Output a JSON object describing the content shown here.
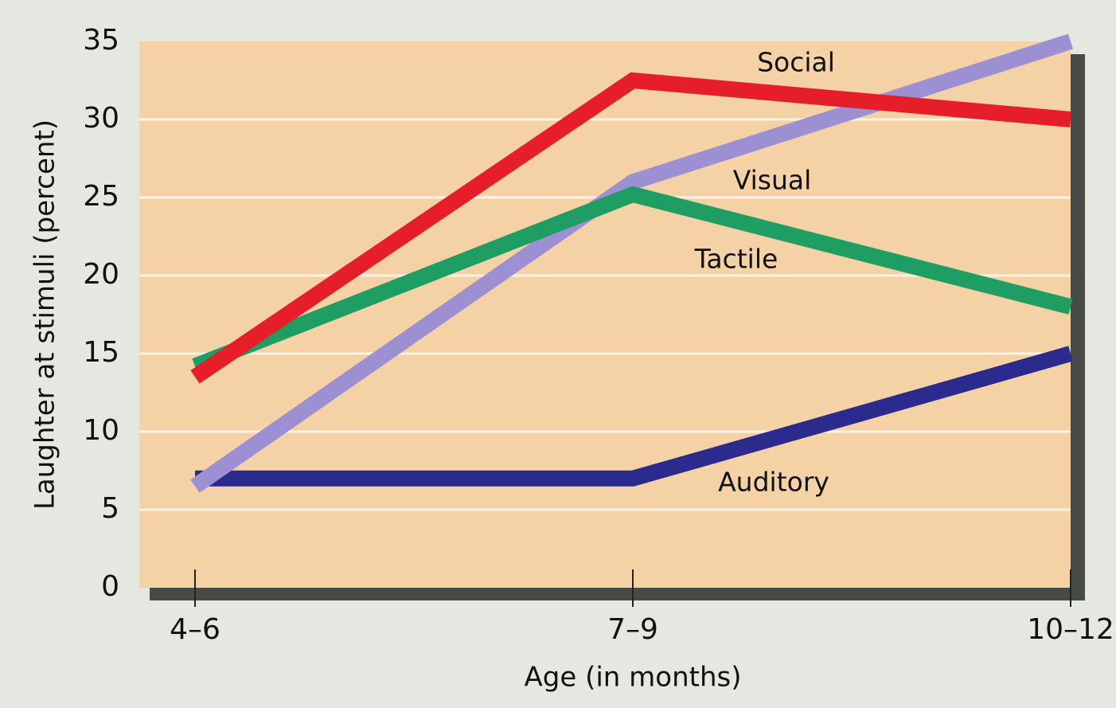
{
  "chart_data": {
    "type": "line",
    "x_label": "Age (in months)",
    "y_label": "Laughter at stimuli (percent)",
    "categories": [
      "4–6",
      "7–9",
      "10–12"
    ],
    "series": [
      {
        "name": "Social",
        "color": "#e61e2a",
        "values": [
          13.5,
          32.5,
          30
        ]
      },
      {
        "name": "Visual",
        "color": "#9c90d2",
        "values": [
          6.5,
          26,
          35
        ]
      },
      {
        "name": "Tactile",
        "color": "#1e9e62",
        "values": [
          14.2,
          25.2,
          18
        ]
      },
      {
        "name": "Auditory",
        "color": "#2b2b8e",
        "values": [
          7,
          7,
          15
        ]
      }
    ],
    "ylim": [
      0,
      35
    ],
    "yticks": [
      0,
      5,
      10,
      15,
      20,
      25,
      30,
      35
    ],
    "grid": true
  }
}
